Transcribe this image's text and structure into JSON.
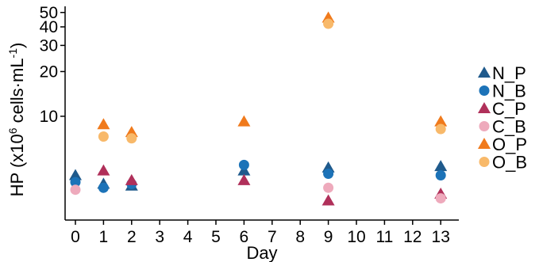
{
  "chart_data": {
    "type": "scatter",
    "title": "",
    "xlabel": "Day",
    "ylabel_prefix": "HP (x10",
    "ylabel_exp": "6",
    "ylabel_suffix": " cells·mL",
    "ylabel_exp2": "-1",
    "ylabel_close": ")",
    "y_scale": "log",
    "ylim": [
      2,
      55
    ],
    "x_ticks": [
      "0",
      "1",
      "2",
      "3",
      "4",
      "5",
      "6",
      "7",
      "8",
      "9",
      "10",
      "11",
      "12",
      "13"
    ],
    "y_ticks": [
      {
        "value": 10,
        "label": "10"
      },
      {
        "value": 20,
        "label": "20"
      },
      {
        "value": 30,
        "label": "30"
      },
      {
        "value": 40,
        "label": "40"
      },
      {
        "value": 50,
        "label": "50"
      }
    ],
    "grid": false,
    "legend_position": "right",
    "series": [
      {
        "name": "N_P",
        "color": "#1f5a8c",
        "marker": "triangle",
        "points": [
          {
            "x": 0,
            "y": 4.0
          },
          {
            "x": 1,
            "y": 3.5
          },
          {
            "x": 2,
            "y": 3.4
          },
          {
            "x": 6,
            "y": 4.3
          },
          {
            "x": 9,
            "y": 4.5
          },
          {
            "x": 13,
            "y": 4.6
          }
        ]
      },
      {
        "name": "N_B",
        "color": "#1c73b8",
        "marker": "circle",
        "points": [
          {
            "x": 0,
            "y": 3.6
          },
          {
            "x": 1,
            "y": 3.3
          },
          {
            "x": 2,
            "y": 3.5
          },
          {
            "x": 6,
            "y": 4.7
          },
          {
            "x": 9,
            "y": 4.1
          },
          {
            "x": 13,
            "y": 4.0
          }
        ]
      },
      {
        "name": "C_P",
        "color": "#b0305a",
        "marker": "triangle",
        "points": [
          {
            "x": 1,
            "y": 4.3
          },
          {
            "x": 2,
            "y": 3.7
          },
          {
            "x": 6,
            "y": 3.7
          },
          {
            "x": 9,
            "y": 2.7
          },
          {
            "x": 13,
            "y": 3.0
          }
        ]
      },
      {
        "name": "C_B",
        "color": "#eeaabc",
        "marker": "circle",
        "points": [
          {
            "x": 0,
            "y": 3.2
          },
          {
            "x": 9,
            "y": 3.3
          },
          {
            "x": 13,
            "y": 2.8
          }
        ]
      },
      {
        "name": "O_P",
        "color": "#f07a1c",
        "marker": "triangle",
        "points": [
          {
            "x": 1,
            "y": 8.8
          },
          {
            "x": 2,
            "y": 7.8
          },
          {
            "x": 6,
            "y": 9.2
          },
          {
            "x": 9,
            "y": 46
          },
          {
            "x": 13,
            "y": 9.2
          }
        ]
      },
      {
        "name": "O_B",
        "color": "#f8b96a",
        "marker": "circle",
        "points": [
          {
            "x": 1,
            "y": 7.3
          },
          {
            "x": 2,
            "y": 7.1
          },
          {
            "x": 9,
            "y": 42
          },
          {
            "x": 13,
            "y": 8.2
          }
        ]
      }
    ]
  }
}
